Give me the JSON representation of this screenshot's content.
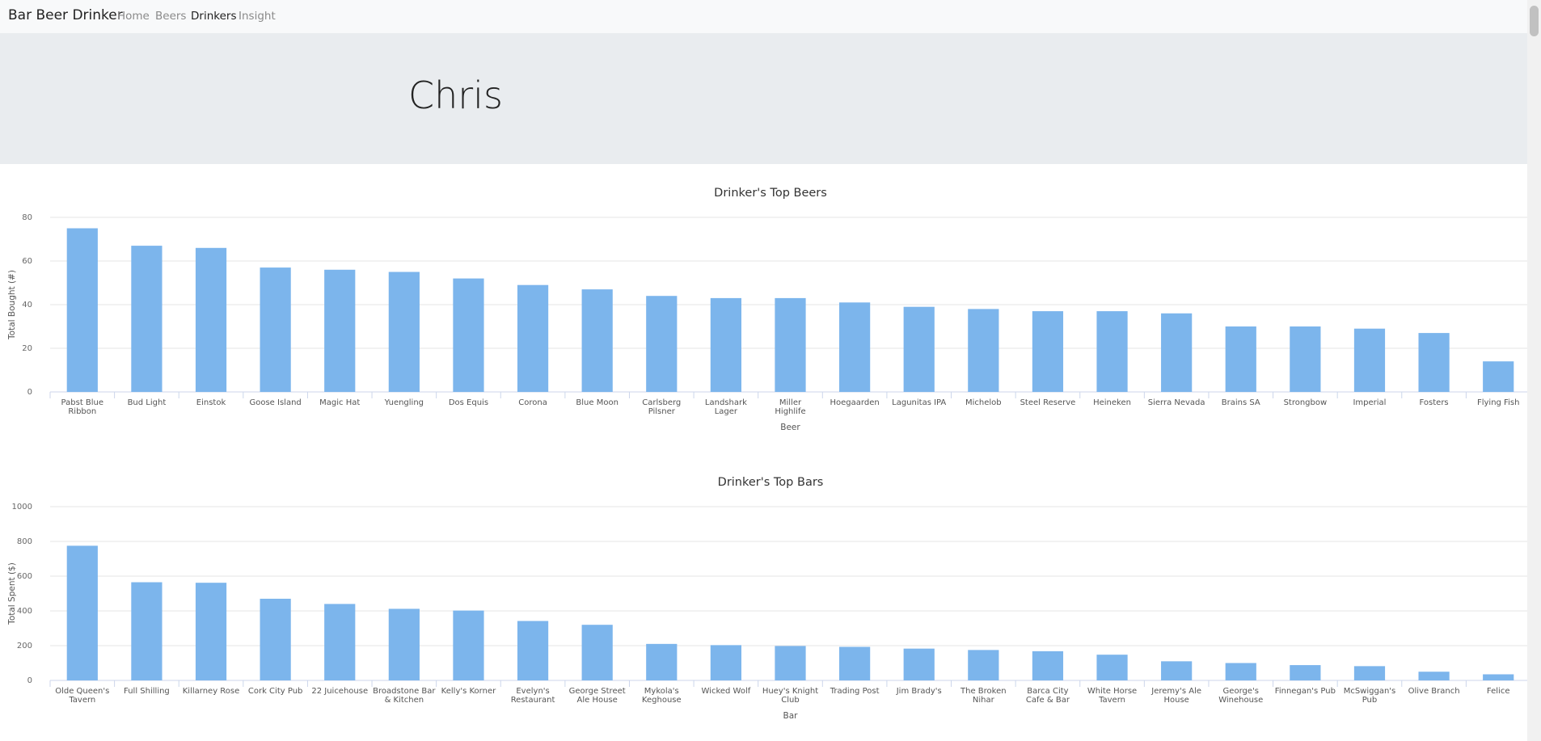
{
  "navbar": {
    "brand": "Bar Beer Drinker",
    "links": [
      {
        "label": "Home",
        "active": false
      },
      {
        "label": "Beers",
        "active": false
      },
      {
        "label": "Drinkers",
        "active": true
      },
      {
        "label": "Insight",
        "active": false
      }
    ]
  },
  "header": {
    "title": "Chris"
  },
  "colors": {
    "bar": "#7cb5ec",
    "jumbotron": "#e9ecef",
    "navbar": "#f8f9fa"
  },
  "chart_data": [
    {
      "type": "bar",
      "title": "Drinker's Top Beers",
      "xlabel": "Beer",
      "ylabel": "Total Bought (#)",
      "ylim": [
        0,
        80
      ],
      "yticks": [
        0,
        20,
        40,
        60,
        80
      ],
      "grid": true,
      "categories": [
        "Pabst Blue Ribbon",
        "Bud Light",
        "Einstok",
        "Goose Island",
        "Magic Hat",
        "Yuengling",
        "Dos Equis",
        "Corona",
        "Blue Moon",
        "Carlsberg Pilsner",
        "Landshark Lager",
        "Miller Highlife",
        "Hoegaarden",
        "Lagunitas IPA",
        "Michelob",
        "Steel Reserve",
        "Heineken",
        "Sierra Nevada",
        "Brains SA",
        "Strongbow",
        "Imperial",
        "Fosters",
        "Flying Fish"
      ],
      "values": [
        75,
        67,
        66,
        57,
        56,
        55,
        52,
        49,
        47,
        44,
        43,
        43,
        41,
        39,
        38,
        37,
        37,
        36,
        30,
        30,
        29,
        27,
        14
      ]
    },
    {
      "type": "bar",
      "title": "Drinker's Top Bars",
      "xlabel": "Bar",
      "ylabel": "Total Spent ($)",
      "ylim": [
        0,
        1000
      ],
      "yticks": [
        0,
        200,
        400,
        600,
        800,
        1000
      ],
      "grid": true,
      "categories": [
        "Olde Queen's Tavern",
        "Full Shilling",
        "Killarney Rose",
        "Cork City Pub",
        "22 Juicehouse",
        "Broadstone Bar & Kitchen",
        "Kelly's Korner",
        "Evelyn's Restaurant",
        "George Street Ale House",
        "Mykola's Keghouse",
        "Wicked Wolf",
        "Huey's Knight Club",
        "Trading Post",
        "Jim Brady's",
        "The Broken Nihar",
        "Barca City Cafe & Bar",
        "White Horse Tavern",
        "Jeremy's Ale House",
        "George's Winehouse",
        "Finnegan's Pub",
        "McSwiggan's Pub",
        "Olive Branch",
        "Felice"
      ],
      "values": [
        775,
        565,
        562,
        470,
        440,
        412,
        402,
        342,
        320,
        210,
        203,
        198,
        193,
        183,
        175,
        168,
        148,
        110,
        100,
        88,
        82,
        50,
        35
      ]
    }
  ]
}
